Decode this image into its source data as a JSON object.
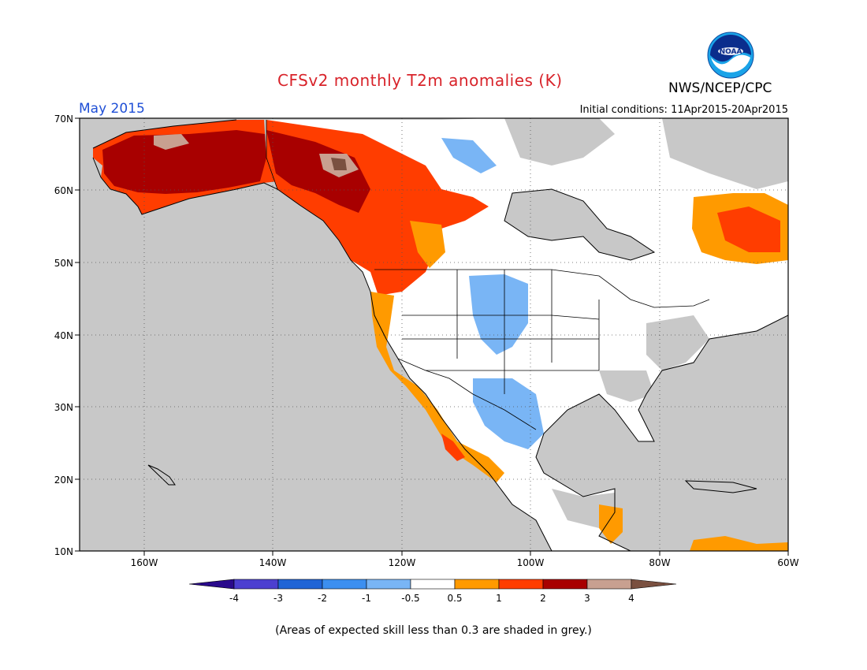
{
  "title": "CFSv2 monthly T2m anomalies (K)",
  "agency": "NWS/NCEP/CPC",
  "logo_text": "NOAA",
  "valid_month": "May 2015",
  "initial_conditions": "Initial conditions: 11Apr2015-20Apr2015",
  "lat_labels": [
    "70N",
    "60N",
    "50N",
    "40N",
    "30N",
    "20N",
    "10N"
  ],
  "lon_labels": [
    "160W",
    "140W",
    "120W",
    "100W",
    "80W",
    "60W"
  ],
  "colorbar": {
    "tick_labels": [
      "-4",
      "-3",
      "-2",
      "-1",
      "-0.5",
      "0.5",
      "1",
      "2",
      "3",
      "4"
    ],
    "colors": [
      "#2a0a8c",
      "#4c3fd0",
      "#1f64d6",
      "#3c8ff0",
      "#79b5f5",
      "#ffffff",
      "#ff9a00",
      "#ff3d00",
      "#a80000",
      "#c8a090",
      "#7a5040"
    ]
  },
  "footnote": "(Areas of expected skill less than 0.3 are shaded in grey.)"
}
